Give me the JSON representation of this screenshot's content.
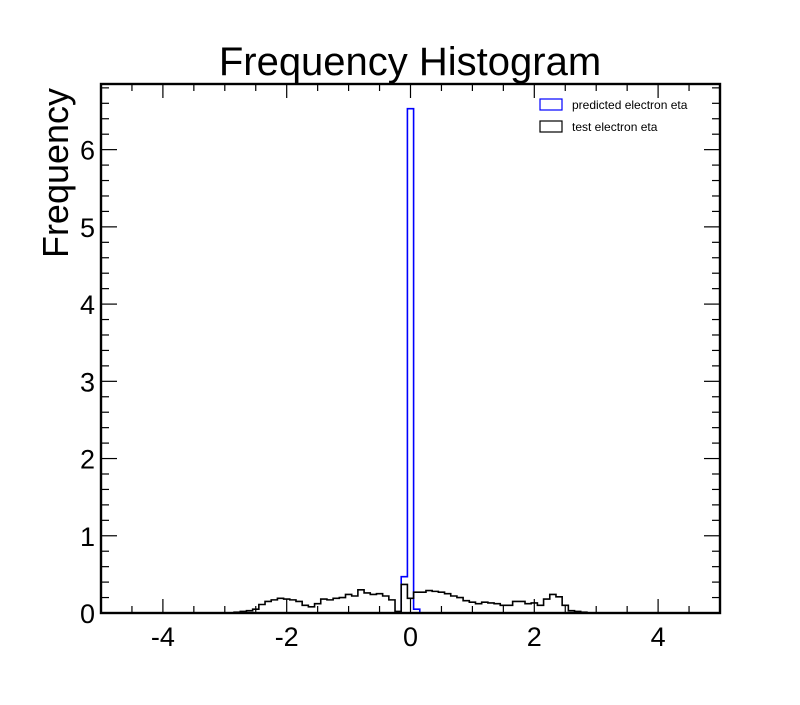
{
  "chart_data": {
    "type": "step-histogram",
    "title": "Frequency Histogram",
    "xlabel": "",
    "ylabel": "Frequency",
    "xlim": [
      -5,
      5
    ],
    "ylim": [
      0,
      6.85
    ],
    "x_ticks": [
      "-4",
      "-2",
      "0",
      "2",
      "4"
    ],
    "y_ticks": [
      "0",
      "1",
      "2",
      "3",
      "4",
      "5",
      "6"
    ],
    "x_tick_values": [
      -4,
      -2,
      0,
      2,
      4
    ],
    "y_tick_values": [
      0,
      1,
      2,
      3,
      4,
      5,
      6
    ],
    "grid": false,
    "legend_position": "top-right",
    "series": [
      {
        "name": "predicted electron eta",
        "color": "#0000ff",
        "bin_edges": [
          -0.15,
          -0.05,
          0.05,
          0.15
        ],
        "values": [
          0.47,
          6.53,
          0.05
        ]
      },
      {
        "name": "test electron eta",
        "color": "#000000",
        "bin_edges": [
          -2.95,
          -2.85,
          -2.75,
          -2.65,
          -2.55,
          -2.45,
          -2.35,
          -2.25,
          -2.15,
          -2.05,
          -1.95,
          -1.85,
          -1.75,
          -1.65,
          -1.55,
          -1.45,
          -1.35,
          -1.25,
          -1.15,
          -1.05,
          -0.95,
          -0.85,
          -0.75,
          -0.65,
          -0.55,
          -0.45,
          -0.35,
          -0.25,
          -0.15,
          -0.05,
          0.05,
          0.15,
          0.25,
          0.35,
          0.45,
          0.55,
          0.65,
          0.75,
          0.85,
          0.95,
          1.05,
          1.15,
          1.25,
          1.35,
          1.45,
          1.55,
          1.65,
          1.75,
          1.85,
          1.95,
          2.05,
          2.15,
          2.25,
          2.35,
          2.45,
          2.55,
          2.65,
          2.75,
          2.85
        ],
        "values": [
          0.0,
          0.01,
          0.02,
          0.03,
          0.05,
          0.11,
          0.15,
          0.17,
          0.19,
          0.18,
          0.17,
          0.15,
          0.1,
          0.08,
          0.12,
          0.18,
          0.17,
          0.19,
          0.2,
          0.24,
          0.22,
          0.3,
          0.26,
          0.24,
          0.25,
          0.22,
          0.17,
          0.02,
          0.37,
          0.19,
          0.27,
          0.27,
          0.29,
          0.28,
          0.27,
          0.25,
          0.22,
          0.2,
          0.16,
          0.14,
          0.12,
          0.14,
          0.13,
          0.12,
          0.1,
          0.1,
          0.15,
          0.15,
          0.12,
          0.13,
          0.1,
          0.18,
          0.24,
          0.21,
          0.1,
          0.03,
          0.02,
          0.01
        ]
      }
    ]
  }
}
